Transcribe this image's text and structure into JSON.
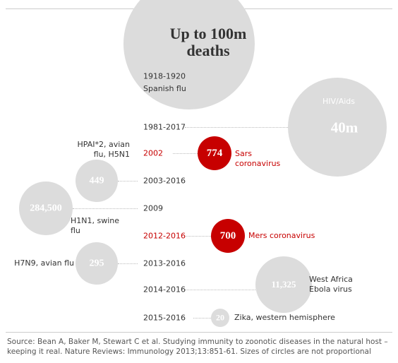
{
  "chart_data": {
    "type": "bubble",
    "categories": [
      "1918-1920",
      "1981-2017",
      "2002",
      "2003-2016",
      "2009",
      "2012-2016",
      "2013-2016",
      "2014-2016",
      "2015-2016"
    ],
    "labels": [
      "Spanish flu",
      "HIV/Aids",
      "Sars coronavirus",
      "HPAI*2, avian flu, H5N1",
      "H1N1, swine flu",
      "Mers coronavirus",
      "H7N9, avian flu",
      "West Africa Ebola virus",
      "Zika, western hemisphere"
    ],
    "values": [
      100000000,
      40000000,
      774,
      449,
      284500,
      700,
      295,
      11325,
      20
    ],
    "value_labels": [
      "Up to 100m deaths",
      "40m",
      "774",
      "449",
      "284,500",
      "700",
      "295",
      "11,325",
      "20"
    ],
    "colors": [
      "#dcdcdc",
      "#dcdcdc",
      "#c70000",
      "#dcdcdc",
      "#dcdcdc",
      "#c70000",
      "#dcdcdc",
      "#dcdcdc",
      "#dcdcdc"
    ],
    "highlight_color": "#c70000",
    "source": "Source: Bean A, Baker M, Stewart C et al. Studying immunity to zoonotic diseases in the natural host – keeping it real. Nature Reviews: Immunology 2013;13:851-61. Sizes of circles are not proportional"
  }
}
